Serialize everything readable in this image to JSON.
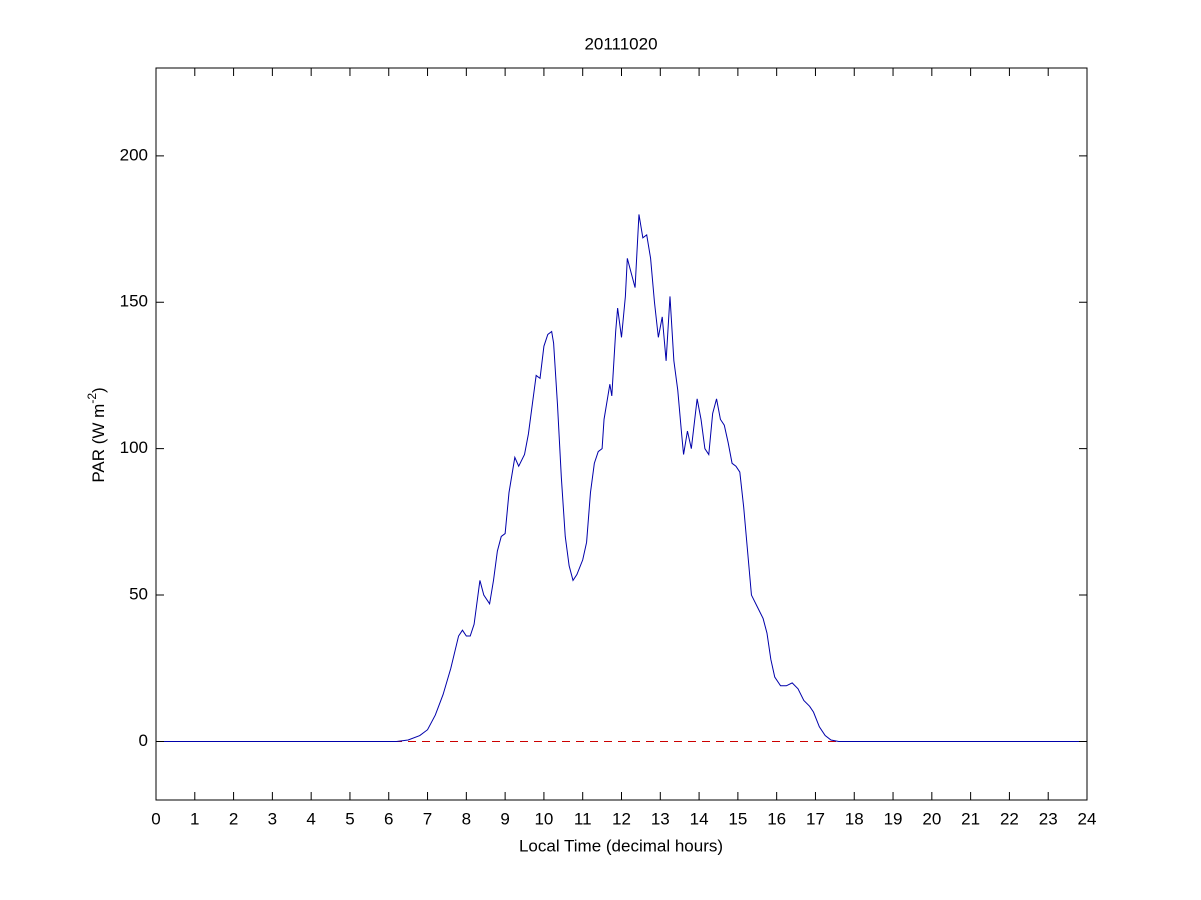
{
  "chart_data": {
    "type": "line",
    "title": "20111020",
    "x_label": "Local Time (decimal hours)",
    "y_label_parts": [
      "PAR (W m",
      "-2",
      ")"
    ],
    "xlim": [
      0,
      24
    ],
    "xticks": [
      0,
      1,
      2,
      3,
      4,
      5,
      6,
      7,
      8,
      9,
      10,
      11,
      12,
      13,
      14,
      15,
      16,
      17,
      18,
      19,
      20,
      21,
      22,
      23,
      24
    ],
    "ylim": [
      -20,
      230
    ],
    "yticks": [
      0,
      50,
      100,
      150,
      200
    ],
    "grid": false,
    "reference_line": {
      "y": 0,
      "color": "#cc0000",
      "dashed": true
    },
    "series": [
      {
        "color": "#0000aa",
        "x": [
          0,
          6.2,
          6.5,
          6.8,
          7.0,
          7.2,
          7.4,
          7.6,
          7.8,
          7.9,
          8.0,
          8.1,
          8.2,
          8.3,
          8.35,
          8.45,
          8.6,
          8.7,
          8.8,
          8.9,
          9.0,
          9.1,
          9.2,
          9.25,
          9.35,
          9.5,
          9.6,
          9.7,
          9.8,
          9.9,
          10.0,
          10.1,
          10.2,
          10.25,
          10.35,
          10.45,
          10.55,
          10.65,
          10.75,
          10.85,
          11.0,
          11.1,
          11.2,
          11.3,
          11.4,
          11.5,
          11.55,
          11.7,
          11.75,
          11.85,
          11.9,
          12.0,
          12.1,
          12.15,
          12.25,
          12.35,
          12.45,
          12.55,
          12.65,
          12.75,
          12.85,
          12.95,
          13.05,
          13.15,
          13.25,
          13.35,
          13.45,
          13.55,
          13.6,
          13.7,
          13.8,
          13.95,
          14.05,
          14.15,
          14.25,
          14.35,
          14.45,
          14.55,
          14.65,
          14.75,
          14.85,
          14.95,
          15.05,
          15.15,
          15.25,
          15.35,
          15.5,
          15.65,
          15.75,
          15.85,
          15.95,
          16.1,
          16.25,
          16.4,
          16.55,
          16.7,
          16.85,
          16.95,
          17.1,
          17.25,
          17.4,
          17.6,
          24
        ],
        "values": [
          0,
          0,
          0.5,
          2,
          4,
          9,
          16,
          25,
          36,
          38,
          36,
          36,
          40,
          50,
          55,
          50,
          47,
          55,
          65,
          70,
          71,
          85,
          93,
          97,
          94,
          98,
          105,
          115,
          125,
          124,
          135,
          139,
          140,
          136,
          115,
          90,
          70,
          60,
          55,
          57,
          62,
          68,
          85,
          95,
          99,
          100,
          110,
          122,
          118,
          140,
          148,
          138,
          152,
          165,
          160,
          155,
          180,
          172,
          173,
          165,
          150,
          138,
          145,
          130,
          152,
          130,
          120,
          105,
          98,
          106,
          100,
          117,
          110,
          100,
          98,
          112,
          117,
          110,
          108,
          102,
          95,
          94,
          92,
          80,
          65,
          50,
          46,
          42,
          37,
          28,
          22,
          19,
          19,
          20,
          18,
          14,
          12,
          10,
          5,
          2,
          0.5,
          0,
          0
        ]
      }
    ]
  }
}
